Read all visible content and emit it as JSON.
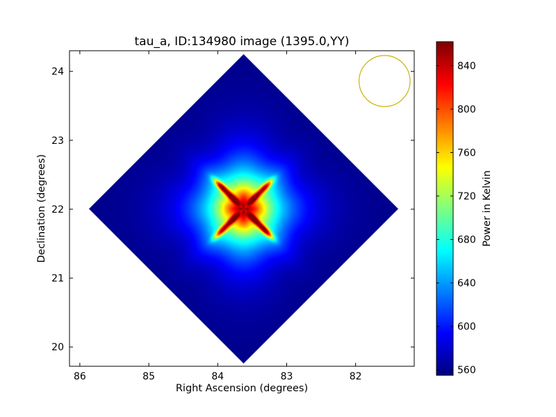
{
  "chart_data": {
    "type": "heatmap",
    "title": "tau_a, ID:134980 image (1395.0,YY)",
    "xlabel": "Right Ascension (degrees)",
    "ylabel": "Declination (degrees)",
    "xlim": [
      86.15,
      81.15
    ],
    "ylim": [
      19.72,
      24.3
    ],
    "x_ticks": [
      86,
      85,
      84,
      83,
      82
    ],
    "y_ticks": [
      20,
      21,
      22,
      23,
      24
    ],
    "x_tick_labels": [
      "86",
      "85",
      "84",
      "83",
      "82"
    ],
    "y_tick_labels": [
      "20",
      "21",
      "22",
      "23",
      "24"
    ],
    "colorbar": {
      "label": "Power in Kelvin",
      "range": [
        555,
        862
      ],
      "ticks": [
        560,
        600,
        640,
        680,
        720,
        760,
        800,
        840
      ],
      "tick_labels": [
        "560",
        "600",
        "640",
        "680",
        "720",
        "760",
        "800",
        "840"
      ],
      "colormap": "jet"
    },
    "field": {
      "center_ra": 83.63,
      "center_dec": 22.01,
      "half_diagonal_deg": 2.25,
      "background_level": 558,
      "source_peak_level": 860
    },
    "beam": {
      "center_ra": 81.58,
      "center_dec": 23.86,
      "radius_deg": 0.37,
      "color": "#c8b400"
    },
    "colors": {
      "frame": "#000000",
      "background": "#ffffff"
    }
  }
}
